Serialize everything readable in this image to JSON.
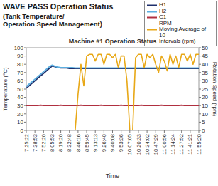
{
  "chart_data": {
    "type": "line",
    "title": "WAVE PASS Operation Status",
    "subtitle": "(Tank Temperature/\nOperation Speed Management)",
    "plot_title": "Machine #1 Operation Status",
    "x_label": "Time",
    "y_label": "Temperature (°C)",
    "y2_label": "Rotation Speed (rpm)",
    "categories": [
      "7:25:22",
      null,
      null,
      "7:38:53",
      null,
      null,
      "7:52:20",
      null,
      null,
      "8:05:53",
      null,
      null,
      "8:19:20",
      null,
      null,
      "8:32:48",
      null,
      null,
      "8:46:16",
      null,
      null,
      "8:59:45",
      null,
      null,
      "9:13:13",
      null,
      null,
      "9:26:40",
      null,
      null,
      "9:40:08",
      null,
      null,
      "9:53:36",
      null,
      null,
      "10:07:05",
      null,
      null,
      "10:20:33",
      null,
      null,
      "10:34:02",
      null,
      null,
      "10:47:29",
      null,
      null,
      "11:00:56",
      null,
      null,
      "11:14:24",
      null,
      null,
      "11:27:52",
      null,
      null,
      "11:41:21",
      null,
      null,
      "11:55:20"
    ],
    "ylim": [
      0,
      100
    ],
    "yticks": [
      0,
      10,
      20,
      30,
      40,
      50,
      60,
      70,
      80,
      90,
      100
    ],
    "y2lim": [
      0,
      50
    ],
    "y2ticks": [
      0,
      5,
      10,
      15,
      20,
      25,
      30,
      35,
      40,
      45,
      50
    ],
    "grid": false,
    "legend": "top-right",
    "series": [
      {
        "name": "H1",
        "color": "#1f2f6b",
        "values": [
          51,
          54,
          57,
          60,
          63,
          66,
          69,
          72,
          75,
          78,
          77,
          76,
          75.5,
          75.5,
          75.5,
          75,
          75,
          75,
          75,
          75,
          75,
          75,
          75,
          75,
          75,
          75,
          75,
          75,
          75,
          75,
          75,
          75,
          75,
          75,
          75,
          75,
          75,
          75,
          75,
          75,
          75,
          75,
          75,
          75,
          75,
          75,
          75,
          75,
          75,
          75,
          75,
          75,
          75,
          75,
          75,
          75,
          75,
          75,
          75,
          75,
          75
        ]
      },
      {
        "name": "H2",
        "color": "#5aaee0",
        "values": [
          53,
          56,
          59,
          62,
          65,
          68,
          71,
          74,
          77,
          79,
          77.5,
          76.5,
          76,
          76,
          76,
          76,
          76,
          75.5,
          75.5,
          75.5,
          75.5,
          75.5,
          75.5,
          75.5,
          75.5,
          75.5,
          75.5,
          75.5,
          75.5,
          75.5,
          75.5,
          75.5,
          75.5,
          75.5,
          75.5,
          75.5,
          75.5,
          75.5,
          75.5,
          75.5,
          75.5,
          75.5,
          75.5,
          75.5,
          75.5,
          75.5,
          75.5,
          75.5,
          75.5,
          75.5,
          75.5,
          75.5,
          75.5,
          75.5,
          75.5,
          75.5,
          75.5,
          75.5,
          75.5,
          75.5,
          75.5
        ]
      },
      {
        "name": "C1\nRPM",
        "color": "#b03040",
        "values": [
          30,
          30,
          30,
          30,
          30,
          30.5,
          30,
          30,
          30,
          30,
          30,
          30,
          30.5,
          30,
          30,
          30,
          30,
          30,
          30,
          30.5,
          30,
          30,
          30,
          30,
          30,
          30,
          30.5,
          30,
          30,
          30,
          30,
          30,
          30,
          30.5,
          30,
          30,
          30,
          30,
          30,
          30,
          30.5,
          30,
          30,
          30,
          30,
          30,
          30,
          30.5,
          30,
          30,
          30,
          30,
          30,
          30,
          30.5,
          30,
          30,
          30,
          30,
          30,
          30
        ]
      },
      {
        "name": "Moving Average of 10\nIntervals (rpm)",
        "color": "#e8a817",
        "axis": "y2",
        "values": [
          0,
          0,
          0,
          0,
          0,
          0,
          0,
          0,
          0,
          0,
          0,
          0,
          0,
          0,
          0,
          0,
          0,
          0,
          22,
          40,
          27,
          45,
          46,
          46,
          42,
          46,
          46,
          40,
          46,
          46,
          44,
          46,
          38,
          45,
          45,
          30,
          0,
          0,
          44,
          46,
          46,
          38,
          46,
          44,
          46,
          40,
          35,
          45,
          42,
          36,
          46,
          40,
          45,
          38,
          46,
          46,
          42,
          46,
          40,
          46,
          46
        ]
      }
    ]
  }
}
